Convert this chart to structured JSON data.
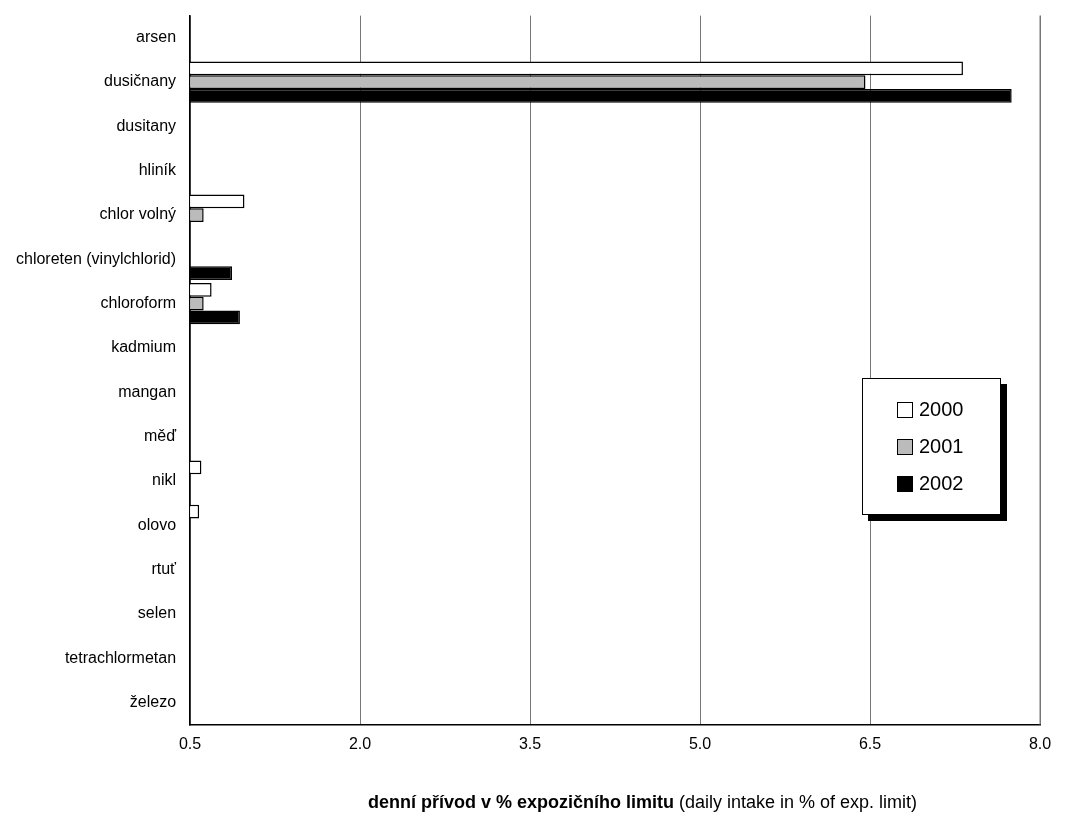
{
  "chart_data": {
    "type": "bar",
    "orientation": "horizontal",
    "xlabel": "denní přívod v % expozičního limitu (daily intake in % of exp. limit)",
    "categories": [
      "arsen",
      "dusičnany",
      "dusitany",
      "hliník",
      "chlor volný",
      "chloreten (vinylchlorid)",
      "chloroform",
      "kadmium",
      "mangan",
      "měď",
      "nikl",
      "olovo",
      "rtuť",
      "selen",
      "tetrachlormetan",
      "železo"
    ],
    "series": [
      {
        "name": "2000",
        "color": "#ffffff",
        "values": [
          null,
          7.32,
          null,
          null,
          0.98,
          null,
          0.69,
          null,
          null,
          null,
          0.6,
          0.58,
          null,
          null,
          null,
          null
        ]
      },
      {
        "name": "2001",
        "color": "#bbbbbb",
        "values": [
          null,
          6.46,
          null,
          null,
          0.62,
          null,
          0.62,
          null,
          null,
          null,
          null,
          null,
          null,
          null,
          null,
          null
        ]
      },
      {
        "name": "2002",
        "color": "#000000",
        "values": [
          null,
          7.75,
          null,
          null,
          null,
          0.87,
          0.94,
          null,
          null,
          null,
          null,
          null,
          null,
          null,
          null,
          null
        ]
      }
    ],
    "xlim": [
      0.5,
      8
    ],
    "xticks": [
      0.5,
      {
        "value": 2,
        "label": "2.0"
      },
      3.5,
      {
        "value": 5,
        "label": "5.0"
      },
      6.5,
      {
        "value": 8,
        "label": "8.0"
      }
    ],
    "grid": "x",
    "legend": "right"
  }
}
